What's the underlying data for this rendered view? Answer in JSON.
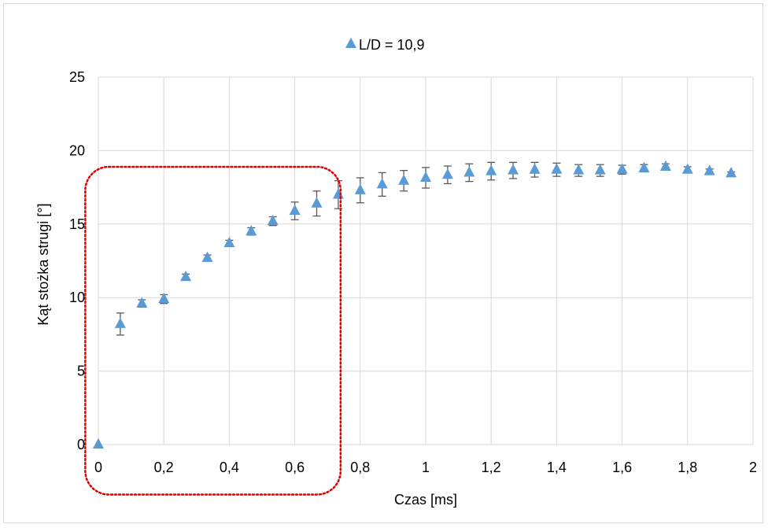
{
  "chart_data": {
    "type": "scatter",
    "title": "",
    "xlabel": "Czas [ms]",
    "ylabel": "Kąt stożka strugi [°]",
    "xlim": [
      0,
      2
    ],
    "ylim": [
      0,
      25
    ],
    "x_ticks": [
      "0",
      "0,2",
      "0,4",
      "0,6",
      "0,8",
      "1",
      "1,2",
      "1,4",
      "1,6",
      "1,8",
      "2"
    ],
    "y_ticks": [
      "0",
      "5",
      "10",
      "15",
      "20",
      "25"
    ],
    "grid": true,
    "legend_position": "top",
    "series": [
      {
        "name": "L/D = 10,9",
        "color": "#5b9bd5",
        "marker": "triangle",
        "points": [
          {
            "x": 0.0,
            "y": 0.0,
            "err": 0.0
          },
          {
            "x": 0.067,
            "y": 8.2,
            "err": 0.75
          },
          {
            "x": 0.133,
            "y": 9.6,
            "err": 0.25
          },
          {
            "x": 0.2,
            "y": 9.9,
            "err": 0.3
          },
          {
            "x": 0.267,
            "y": 11.4,
            "err": 0.2
          },
          {
            "x": 0.333,
            "y": 12.7,
            "err": 0.2
          },
          {
            "x": 0.4,
            "y": 13.7,
            "err": 0.2
          },
          {
            "x": 0.467,
            "y": 14.5,
            "err": 0.25
          },
          {
            "x": 0.533,
            "y": 15.2,
            "err": 0.3
          },
          {
            "x": 0.6,
            "y": 15.9,
            "err": 0.6
          },
          {
            "x": 0.667,
            "y": 16.4,
            "err": 0.85
          },
          {
            "x": 0.733,
            "y": 17.0,
            "err": 0.95
          },
          {
            "x": 0.8,
            "y": 17.3,
            "err": 0.85
          },
          {
            "x": 0.867,
            "y": 17.7,
            "err": 0.8
          },
          {
            "x": 0.933,
            "y": 17.95,
            "err": 0.7
          },
          {
            "x": 1.0,
            "y": 18.15,
            "err": 0.7
          },
          {
            "x": 1.067,
            "y": 18.35,
            "err": 0.6
          },
          {
            "x": 1.133,
            "y": 18.5,
            "err": 0.6
          },
          {
            "x": 1.2,
            "y": 18.6,
            "err": 0.6
          },
          {
            "x": 1.267,
            "y": 18.65,
            "err": 0.55
          },
          {
            "x": 1.333,
            "y": 18.7,
            "err": 0.5
          },
          {
            "x": 1.4,
            "y": 18.7,
            "err": 0.45
          },
          {
            "x": 1.467,
            "y": 18.65,
            "err": 0.4
          },
          {
            "x": 1.533,
            "y": 18.65,
            "err": 0.4
          },
          {
            "x": 1.6,
            "y": 18.7,
            "err": 0.3
          },
          {
            "x": 1.667,
            "y": 18.8,
            "err": 0.25
          },
          {
            "x": 1.733,
            "y": 18.9,
            "err": 0.2
          },
          {
            "x": 1.8,
            "y": 18.7,
            "err": 0.2
          },
          {
            "x": 1.867,
            "y": 18.6,
            "err": 0.15
          },
          {
            "x": 1.933,
            "y": 18.45,
            "err": 0.1
          }
        ]
      }
    ],
    "annotations": [
      {
        "type": "dotted-rounded-rectangle",
        "color": "#e00000",
        "x_range": [
          -0.04,
          0.74
        ],
        "y_range": [
          -3.4,
          18.9
        ]
      }
    ]
  }
}
